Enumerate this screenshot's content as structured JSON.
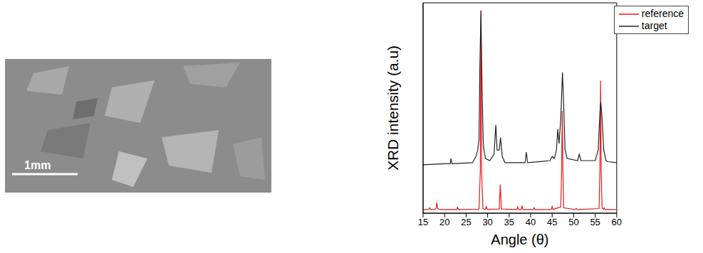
{
  "image": {
    "scale_bar": "1mm"
  },
  "chart_data": {
    "type": "line",
    "x_label": "Angle (θ)",
    "y_label": "XRD intensity  (a.u)",
    "xlim": [
      15,
      60
    ],
    "xticks": [
      15,
      20,
      25,
      30,
      35,
      40,
      45,
      50,
      55,
      60
    ],
    "ylim": [
      0,
      100
    ],
    "tick_labels": "x",
    "grid": false,
    "legend": "upper right",
    "series": [
      {
        "name": "reference",
        "color": "#e41a1c",
        "x": [
          15,
          16,
          16.3,
          16.5,
          16.7,
          17.5,
          18,
          18.2,
          18.4,
          19,
          22.8,
          23,
          23.2,
          28,
          28.3,
          28.45,
          28.6,
          28.9,
          29.5,
          29.7,
          29.9,
          32.7,
          32.95,
          33.2,
          36.8,
          37,
          37.2,
          37.8,
          38,
          38.2,
          40.6,
          40.8,
          41,
          44.8,
          45,
          45.2,
          47,
          47.2,
          47.35,
          47.5,
          47.7,
          50.4,
          50.6,
          50.8,
          55.9,
          56.1,
          56.25,
          56.4,
          56.6,
          56.9,
          57.1,
          57.3,
          60
        ],
        "values": [
          1.7,
          1.7,
          1.8,
          2.6,
          1.8,
          1.7,
          2.2,
          5,
          2.2,
          1.7,
          1.7,
          2.8,
          1.7,
          1.9,
          20,
          96.5,
          20,
          2.2,
          1.8,
          3.2,
          1.8,
          2,
          13.7,
          2,
          1.7,
          3,
          1.7,
          1.7,
          3.6,
          1.7,
          1.7,
          2.6,
          1.7,
          1.8,
          3.2,
          1.8,
          3,
          20,
          48.6,
          20,
          2.5,
          1.7,
          2.3,
          1.7,
          2.2,
          20,
          63,
          20,
          2.5,
          1.8,
          2.6,
          1.7,
          1.7
        ]
      },
      {
        "name": "target",
        "color": "#222222",
        "x": [
          15,
          20,
          21.3,
          21.5,
          21.7,
          26.5,
          27.3,
          27.7,
          28,
          28.2,
          28.45,
          28.7,
          29,
          29.5,
          30.5,
          31.5,
          31.9,
          32.2,
          32.7,
          33,
          33.4,
          34,
          38.7,
          39,
          39.3,
          44.5,
          45,
          45.5,
          46,
          46.3,
          46.6,
          47,
          47.4,
          47.7,
          48,
          48.5,
          50.9,
          51.3,
          51.7,
          55,
          55.7,
          56.1,
          56.3,
          56.6,
          57,
          57.5,
          58,
          60
        ],
        "values": [
          23,
          23.5,
          23.5,
          26,
          23.5,
          24,
          27,
          30,
          35,
          70,
          96,
          60,
          32,
          26,
          25,
          28,
          42,
          30,
          30,
          36,
          27,
          24,
          24,
          29,
          24,
          25,
          27,
          26,
          30,
          40,
          33,
          45,
          67,
          50,
          30,
          26,
          25,
          28,
          25,
          25,
          30,
          48,
          53,
          45,
          30,
          25,
          24.5,
          24
        ]
      }
    ]
  }
}
